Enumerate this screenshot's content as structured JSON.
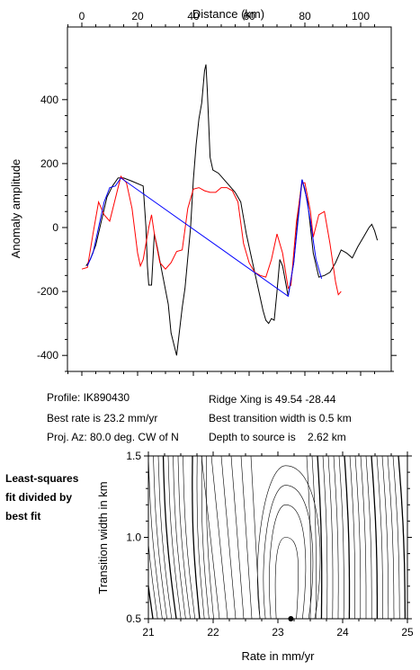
{
  "chart_data": [
    {
      "type": "line",
      "xlabel": "Distance (km)",
      "ylabel": "Anomaly amplitude",
      "xlim": [
        -5,
        108
      ],
      "ylim": [
        -450,
        520
      ],
      "x_ticks": [
        0,
        20,
        40,
        60,
        80,
        100
      ],
      "y_ticks": [
        -400,
        -200,
        0,
        200,
        400
      ],
      "grid": false,
      "series": [
        {
          "color": "#000000",
          "points": [
            [
              1.5,
              -120
            ],
            [
              3,
              -100
            ],
            [
              5,
              -55
            ],
            [
              7,
              20
            ],
            [
              9,
              95
            ],
            [
              11,
              130
            ],
            [
              13,
              155
            ],
            [
              15,
              155
            ],
            [
              18,
              145
            ],
            [
              22,
              130
            ],
            [
              23,
              0
            ],
            [
              23.5,
              -120
            ],
            [
              24,
              -180
            ],
            [
              25,
              -180
            ],
            [
              26,
              -20
            ],
            [
              27,
              -60
            ],
            [
              29,
              -150
            ],
            [
              31,
              -240
            ],
            [
              32,
              -330
            ],
            [
              34,
              -400
            ],
            [
              36,
              -250
            ],
            [
              37,
              -190
            ],
            [
              39,
              0
            ],
            [
              40,
              150
            ],
            [
              41,
              260
            ],
            [
              42,
              340
            ],
            [
              43,
              390
            ],
            [
              44,
              490
            ],
            [
              44.5,
              510
            ],
            [
              45,
              430
            ],
            [
              46,
              220
            ],
            [
              47,
              180
            ],
            [
              49,
              170
            ],
            [
              52,
              140
            ],
            [
              55,
              110
            ],
            [
              57,
              80
            ],
            [
              58,
              30
            ],
            [
              59,
              -20
            ],
            [
              61,
              -100
            ],
            [
              63,
              -180
            ],
            [
              65,
              -260
            ],
            [
              66,
              -290
            ],
            [
              67,
              -300
            ],
            [
              68,
              -285
            ],
            [
              69,
              -290
            ],
            [
              70,
              -200
            ],
            [
              71,
              -100
            ],
            [
              72,
              -120
            ],
            [
              74,
              -215
            ],
            [
              76,
              -110
            ],
            [
              78,
              80
            ],
            [
              79,
              150
            ],
            [
              81,
              80
            ],
            [
              83,
              -80
            ],
            [
              85,
              -155
            ],
            [
              87,
              -150
            ],
            [
              89,
              -140
            ],
            [
              91,
              -110
            ],
            [
              93,
              -70
            ],
            [
              95,
              -80
            ],
            [
              97,
              -95
            ],
            [
              99,
              -60
            ],
            [
              101,
              -30
            ],
            [
              103,
              0
            ],
            [
              104,
              10
            ],
            [
              105,
              -10
            ],
            [
              106,
              -40
            ]
          ]
        },
        {
          "color": "#ff0000",
          "points": [
            [
              0,
              -130
            ],
            [
              2,
              -125
            ],
            [
              4,
              -20
            ],
            [
              6,
              80
            ],
            [
              8,
              40
            ],
            [
              10,
              20
            ],
            [
              12,
              90
            ],
            [
              14,
              160
            ],
            [
              16,
              140
            ],
            [
              18,
              60
            ],
            [
              20,
              -80
            ],
            [
              21,
              -120
            ],
            [
              22,
              -100
            ],
            [
              24,
              0
            ],
            [
              25,
              40
            ],
            [
              26,
              -20
            ],
            [
              28,
              -110
            ],
            [
              30,
              -130
            ],
            [
              32,
              -110
            ],
            [
              34,
              -75
            ],
            [
              36,
              -70
            ],
            [
              38,
              60
            ],
            [
              40,
              120
            ],
            [
              42,
              125
            ],
            [
              44,
              115
            ],
            [
              46,
              110
            ],
            [
              48,
              110
            ],
            [
              50,
              125
            ],
            [
              52,
              125
            ],
            [
              54,
              115
            ],
            [
              56,
              80
            ],
            [
              58,
              -50
            ],
            [
              60,
              -110
            ],
            [
              62,
              -140
            ],
            [
              64,
              -150
            ],
            [
              66,
              -155
            ],
            [
              68,
              -100
            ],
            [
              70,
              -20
            ],
            [
              72,
              -80
            ],
            [
              74,
              -190
            ],
            [
              75,
              -180
            ],
            [
              77,
              20
            ],
            [
              79,
              140
            ],
            [
              80,
              140
            ],
            [
              82,
              50
            ],
            [
              83,
              -30
            ],
            [
              85,
              40
            ],
            [
              87,
              50
            ],
            [
              89,
              -50
            ],
            [
              91,
              -170
            ],
            [
              92,
              -210
            ],
            [
              93,
              -200
            ]
          ]
        },
        {
          "color": "#0000ff",
          "points": [
            [
              2,
              -120
            ],
            [
              4,
              -80
            ],
            [
              6,
              0
            ],
            [
              8,
              80
            ],
            [
              10,
              125
            ],
            [
              12,
              130
            ],
            [
              14,
              155
            ],
            [
              74,
              -215
            ],
            [
              76,
              -110
            ],
            [
              78,
              60
            ],
            [
              79,
              150
            ],
            [
              80,
              120
            ],
            [
              82,
              20
            ],
            [
              84,
              -100
            ],
            [
              86,
              -160
            ]
          ]
        }
      ]
    },
    {
      "type": "contour",
      "xlabel": "Rate in mm/yr",
      "ylabel": "Transition width in km",
      "xlim": [
        21,
        25
      ],
      "ylim": [
        0.5,
        1.5
      ],
      "x_ticks": [
        21,
        22,
        23,
        24,
        25
      ],
      "y_ticks": [
        0.5,
        1.0,
        1.5
      ],
      "best_fit_point": [
        23.2,
        0.5
      ],
      "grid": false
    }
  ],
  "info": {
    "profile": "Profile: IK890430",
    "best_rate": "Best rate is 23.2 mm/yr",
    "proj_az": "Proj. Az: 80.0 deg. CW of N",
    "ridge_xing": "Ridge Xing is 49.54 -28.44",
    "best_width": "Best transition width is 0.5 km",
    "depth": "Depth to source is    2.62 km"
  },
  "side_note": [
    "Least-squares",
    "fit divided by",
    "best fit"
  ]
}
